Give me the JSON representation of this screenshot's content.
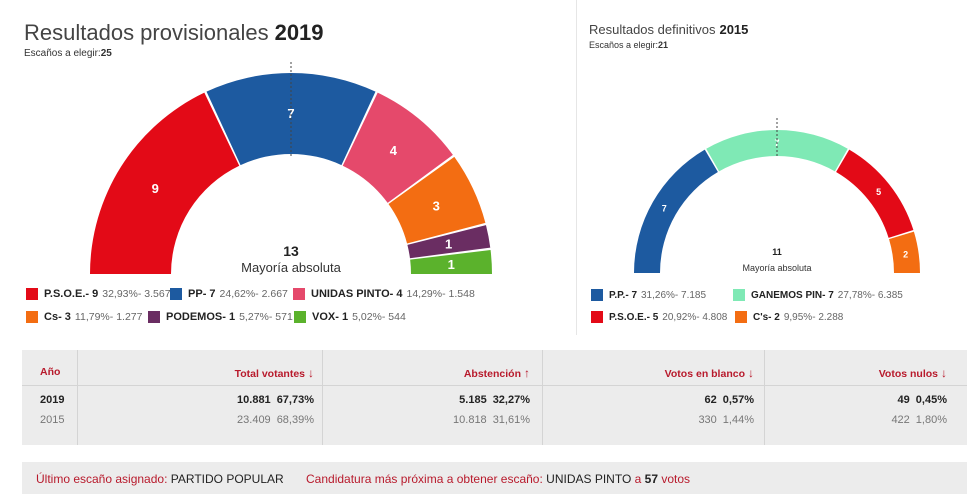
{
  "provisional": {
    "title": "Resultados provisionales",
    "year": "2019",
    "seats_label": "Escaños a elegir:",
    "seats_value": "25",
    "majority_value": "13",
    "majority_label": "Mayoría absoluta"
  },
  "definitive": {
    "title": "Resultados definitivos",
    "year": "2015",
    "seats_label": "Escaños a elegir:",
    "seats_value": "21",
    "majority_value": "11",
    "majority_label": "Mayoría absoluta"
  },
  "chart_data": [
    {
      "type": "pie",
      "title": "Resultados provisionales 2019",
      "shape": "semicircle",
      "total_seats": 25,
      "categories": [
        "P.S.O.E.",
        "PP",
        "UNIDAS PINTO",
        "Cs",
        "PODEMOS",
        "VOX"
      ],
      "values": [
        9,
        7,
        4,
        3,
        1,
        1
      ],
      "percentages": [
        "32,93%",
        "24,62%",
        "14,29%",
        "11,79%",
        "5,27%",
        "5,02%"
      ],
      "votes": [
        "3.567",
        "2.667",
        "1.548",
        "1.277",
        "571",
        "544"
      ],
      "colors": [
        "#e30a17",
        "#1d5aa0",
        "#e5496b",
        "#f36d12",
        "#6a2d62",
        "#5bb22c"
      ]
    },
    {
      "type": "pie",
      "title": "Resultados definitivos 2015",
      "shape": "semicircle",
      "total_seats": 21,
      "categories": [
        "P.P.",
        "GANEMOS PIN",
        "P.S.O.E.",
        "C's"
      ],
      "values": [
        7,
        7,
        5,
        2
      ],
      "percentages": [
        "31,26%",
        "27,78%",
        "20,92%",
        "9,95%"
      ],
      "votes": [
        "7.185",
        "6.385",
        "4.808",
        "2.288"
      ],
      "colors": [
        "#1d5aa0",
        "#7fe9b5",
        "#e30a17",
        "#f36d12"
      ]
    }
  ],
  "legend_left": [
    {
      "name": "P.S.O.E.",
      "seats": "9",
      "pct": "32,93%",
      "votes": "3.567",
      "color": "#e30a17"
    },
    {
      "name": "PP",
      "seats": "7",
      "pct": "24,62%",
      "votes": "2.667",
      "color": "#1d5aa0"
    },
    {
      "name": "UNIDAS PINTO",
      "seats": "4",
      "pct": "14,29%",
      "votes": "1.548",
      "color": "#e5496b"
    },
    {
      "name": "Cs",
      "seats": "3",
      "pct": "11,79%",
      "votes": "1.277",
      "color": "#f36d12"
    },
    {
      "name": "PODEMOS",
      "seats": "1",
      "pct": "5,27%",
      "votes": "571",
      "color": "#6a2d62"
    },
    {
      "name": "VOX",
      "seats": "1",
      "pct": "5,02%",
      "votes": "544",
      "color": "#5bb22c"
    }
  ],
  "legend_right": [
    {
      "name": "P.P.",
      "seats": "7",
      "pct": "31,26%",
      "votes": "7.185",
      "color": "#1d5aa0"
    },
    {
      "name": "GANEMOS PIN",
      "seats": "7",
      "pct": "27,78%",
      "votes": "6.385",
      "color": "#7fe9b5"
    },
    {
      "name": "P.S.O.E.",
      "seats": "5",
      "pct": "20,92%",
      "votes": "4.808",
      "color": "#e30a17"
    },
    {
      "name": "C's",
      "seats": "2",
      "pct": "9,95%",
      "votes": "2.288",
      "color": "#f36d12"
    }
  ],
  "table": {
    "headers": {
      "year": "Año",
      "total": "Total votantes",
      "abstention": "Abstención",
      "blank": "Votos en blanco",
      "null": "Votos nulos"
    },
    "arrows": {
      "total": "↓",
      "abstention": "↑",
      "blank": "↓",
      "null": "↓"
    },
    "rows": [
      {
        "year": "2019",
        "total_n": "10.881",
        "total_p": "67,73%",
        "abs_n": "5.185",
        "abs_p": "32,27%",
        "blank_n": "62",
        "blank_p": "0,57%",
        "null_n": "49",
        "null_p": "0,45%"
      },
      {
        "year": "2015",
        "total_n": "23.409",
        "total_p": "68,39%",
        "abs_n": "10.818",
        "abs_p": "31,61%",
        "blank_n": "330",
        "blank_p": "1,44%",
        "null_n": "422",
        "null_p": "1,80%"
      }
    ]
  },
  "footer": {
    "last_seat_label": "Último escaño asignado:",
    "last_seat_value": "PARTIDO POPULAR",
    "closest_label": "Candidatura más próxima a obtener escaño:",
    "closest_party": "UNIDAS PINTO",
    "closest_mid": "a",
    "closest_votes": "57",
    "closest_suffix": "votos"
  }
}
